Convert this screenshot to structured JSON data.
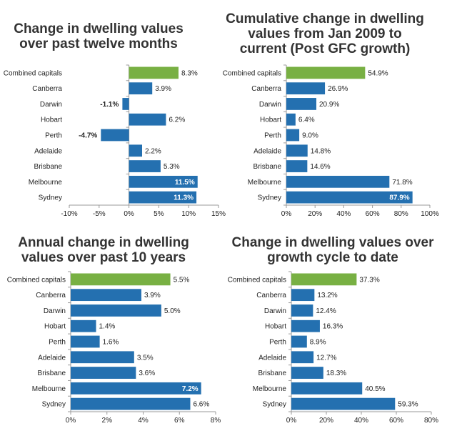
{
  "chart_data": [
    {
      "type": "bar",
      "title": "Change in dwelling values over past twelve months",
      "categories": [
        "Combined capitals",
        "Canberra",
        "Darwin",
        "Hobart",
        "Perth",
        "Adelaide",
        "Brisbane",
        "Melbourne",
        "Sydney"
      ],
      "values": [
        8.3,
        3.9,
        -1.1,
        6.2,
        -4.7,
        2.2,
        5.3,
        11.5,
        11.3
      ],
      "labels": [
        "8.3%",
        "3.9%",
        "-1.1%",
        "6.2%",
        "-4.7%",
        "2.2%",
        "5.3%",
        "11.5%",
        "11.3%"
      ],
      "xlim": [
        -10,
        15
      ],
      "ticks": [
        -10,
        -5,
        0,
        5,
        10,
        15
      ],
      "tick_labels": [
        "-10%",
        "-5%",
        "0%",
        "5%",
        "10%",
        "15%"
      ],
      "grid": false,
      "legend": "none",
      "highlight_index": 0
    },
    {
      "type": "bar",
      "title": "Cumulative change in dwelling values from Jan 2009 to current (Post GFC growth)",
      "categories": [
        "Combined capitals",
        "Canberra",
        "Darwin",
        "Hobart",
        "Perth",
        "Adelaide",
        "Brisbane",
        "Melbourne",
        "Sydney"
      ],
      "values": [
        54.9,
        26.9,
        20.9,
        6.4,
        9.0,
        14.8,
        14.6,
        71.8,
        87.9
      ],
      "labels": [
        "54.9%",
        "26.9%",
        "20.9%",
        "6.4%",
        "9.0%",
        "14.8%",
        "14.6%",
        "71.8%",
        "87.9%"
      ],
      "xlim": [
        0,
        100
      ],
      "ticks": [
        0,
        20,
        40,
        60,
        80,
        100
      ],
      "tick_labels": [
        "0%",
        "20%",
        "40%",
        "60%",
        "80%",
        "100%"
      ],
      "grid": false,
      "legend": "none",
      "highlight_index": 0
    },
    {
      "type": "bar",
      "title": "Annual change in dwelling values over past 10 years",
      "categories": [
        "Combined capitals",
        "Canberra",
        "Darwin",
        "Hobart",
        "Perth",
        "Adelaide",
        "Brisbane",
        "Melbourne",
        "Sydney"
      ],
      "values": [
        5.5,
        3.9,
        5.0,
        1.4,
        1.6,
        3.5,
        3.6,
        7.2,
        6.6
      ],
      "labels": [
        "5.5%",
        "3.9%",
        "5.0%",
        "1.4%",
        "1.6%",
        "3.5%",
        "3.6%",
        "7.2%",
        "6.6%"
      ],
      "xlim": [
        0,
        8
      ],
      "ticks": [
        0,
        2,
        4,
        6,
        8
      ],
      "tick_labels": [
        "0%",
        "2%",
        "4%",
        "6%",
        "8%"
      ],
      "grid": false,
      "legend": "none",
      "highlight_index": 0
    },
    {
      "type": "bar",
      "title": "Change in dwelling values over growth cycle to date",
      "categories": [
        "Combined capitals",
        "Canberra",
        "Darwin",
        "Hobart",
        "Perth",
        "Adelaide",
        "Brisbane",
        "Melbourne",
        "Sydney"
      ],
      "values": [
        37.3,
        13.2,
        12.4,
        16.3,
        8.9,
        12.7,
        18.3,
        40.5,
        59.3
      ],
      "labels": [
        "37.3%",
        "13.2%",
        "12.4%",
        "16.3%",
        "8.9%",
        "12.7%",
        "18.3%",
        "40.5%",
        "59.3%"
      ],
      "xlim": [
        0,
        80
      ],
      "ticks": [
        0,
        20,
        40,
        60,
        80
      ],
      "tick_labels": [
        "0%",
        "20%",
        "40%",
        "60%",
        "80%"
      ],
      "grid": false,
      "legend": "none",
      "highlight_index": 0
    }
  ],
  "colors": {
    "bar": "#2470b0",
    "highlight": "#78b043",
    "axis": "#9a9a9a",
    "text": "#222222",
    "inside_label": "#ffffff"
  }
}
